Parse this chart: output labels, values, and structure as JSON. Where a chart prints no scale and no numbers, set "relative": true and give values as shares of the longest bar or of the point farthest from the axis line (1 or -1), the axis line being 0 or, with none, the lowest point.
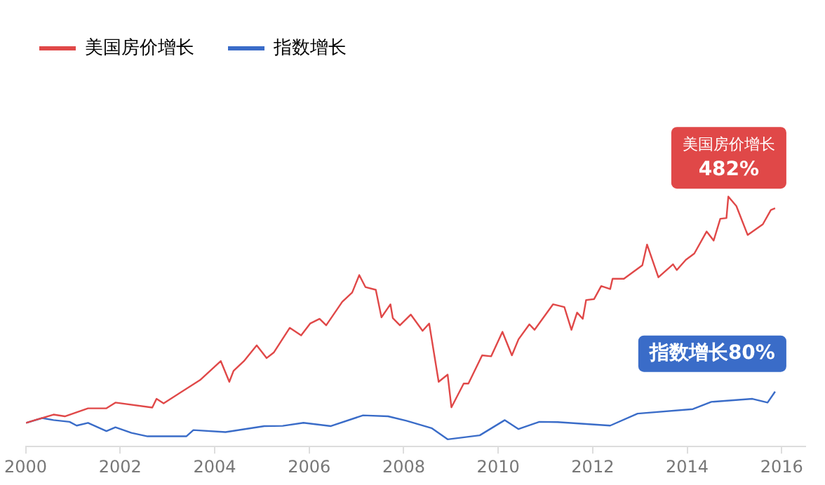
{
  "chart_data": {
    "type": "line",
    "relative": true,
    "legend": "top left",
    "grid": false,
    "marker": "none",
    "line_style": "solid",
    "xlim": [
      2000,
      2016.5
    ],
    "xticks": [
      2000,
      2002,
      2004,
      2006,
      2008,
      2010,
      2012,
      2014,
      2016
    ],
    "annotations": [
      {
        "text": "美国房价增长\n482%",
        "x": 2015.86,
        "y": 0.953
      },
      {
        "text": "指数增长80%",
        "x": 2015.86,
        "y": 0.22
      }
    ],
    "series": [
      {
        "name": "美国房价增长",
        "color": "#e04848",
        "x": [
          2000.01,
          2000.2,
          2000.59,
          2000.83,
          2001.32,
          2001.71,
          2001.9,
          2002.68,
          2002.77,
          2002.92,
          2003.69,
          2004.13,
          2004.31,
          2004.4,
          2004.62,
          2004.89,
          2005.1,
          2005.25,
          2005.59,
          2005.83,
          2006.02,
          2006.22,
          2006.36,
          2006.7,
          2006.91,
          2007.06,
          2007.19,
          2007.41,
          2007.53,
          2007.72,
          2007.77,
          2007.92,
          2008.15,
          2008.4,
          2008.54,
          2008.74,
          2008.93,
          2009.01,
          2009.27,
          2009.37,
          2009.66,
          2009.85,
          2010.09,
          2010.29,
          2010.43,
          2010.66,
          2010.77,
          2011.16,
          2011.4,
          2011.55,
          2011.67,
          2011.79,
          2011.86,
          2012.03,
          2012.18,
          2012.37,
          2012.42,
          2012.66,
          2013.05,
          2013.15,
          2013.39,
          2013.7,
          2013.78,
          2013.97,
          2014.15,
          2014.41,
          2014.56,
          2014.7,
          2014.83,
          2014.87,
          2015.04,
          2015.28,
          2015.6,
          2015.77,
          2015.86
        ],
        "values": [
          0.095,
          0.106,
          0.128,
          0.121,
          0.153,
          0.153,
          0.176,
          0.156,
          0.191,
          0.173,
          0.266,
          0.342,
          0.259,
          0.303,
          0.342,
          0.405,
          0.354,
          0.376,
          0.475,
          0.445,
          0.492,
          0.511,
          0.485,
          0.579,
          0.616,
          0.686,
          0.638,
          0.627,
          0.517,
          0.569,
          0.514,
          0.485,
          0.528,
          0.463,
          0.492,
          0.259,
          0.288,
          0.157,
          0.252,
          0.252,
          0.365,
          0.361,
          0.459,
          0.365,
          0.429,
          0.489,
          0.467,
          0.569,
          0.558,
          0.467,
          0.536,
          0.511,
          0.586,
          0.59,
          0.642,
          0.63,
          0.671,
          0.671,
          0.725,
          0.808,
          0.677,
          0.729,
          0.706,
          0.747,
          0.772,
          0.86,
          0.824,
          0.911,
          0.914,
          1,
          0.962,
          0.846,
          0.889,
          0.946,
          0.953
        ]
      },
      {
        "name": "指数增长",
        "color": "#3a6cc8",
        "x": [
          2000.01,
          2000.35,
          2000.59,
          2000.93,
          2001.08,
          2001.32,
          2001.71,
          2001.9,
          2002.24,
          2002.58,
          2003.4,
          2003.55,
          2004.23,
          2005.05,
          2005.44,
          2005.88,
          2006.46,
          2007.14,
          2007.67,
          2008.06,
          2008.59,
          2008.93,
          2009.61,
          2010.14,
          2010.43,
          2010.87,
          2011.26,
          2012.37,
          2012.95,
          2014.12,
          2014.51,
          2015.38,
          2015.7,
          2015.86
        ],
        "values": [
          0.095,
          0.114,
          0.106,
          0.099,
          0.084,
          0.095,
          0.062,
          0.077,
          0.055,
          0.041,
          0.041,
          0.066,
          0.058,
          0.082,
          0.083,
          0.095,
          0.082,
          0.125,
          0.121,
          0.103,
          0.074,
          0.029,
          0.045,
          0.106,
          0.07,
          0.099,
          0.098,
          0.084,
          0.132,
          0.15,
          0.179,
          0.191,
          0.176,
          0.22
        ]
      }
    ]
  }
}
